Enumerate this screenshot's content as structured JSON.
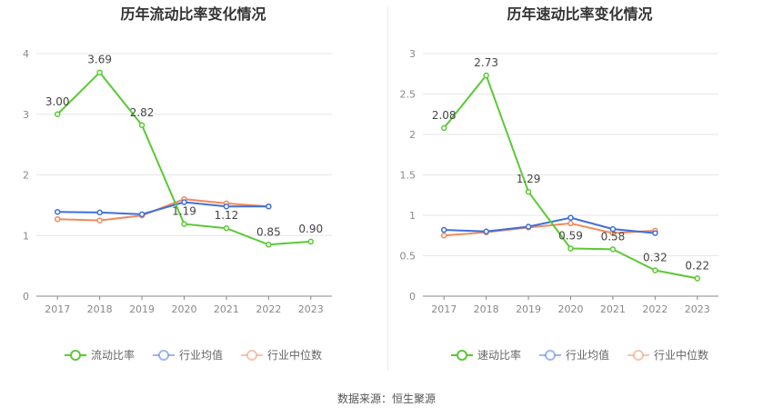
{
  "source_text": "数据来源：恒生聚源",
  "chart_data": [
    {
      "type": "line",
      "title": "历年流动比率变化情况",
      "categories": [
        "2017",
        "2018",
        "2019",
        "2020",
        "2021",
        "2022",
        "2023"
      ],
      "ylim": [
        0,
        4
      ],
      "yticks": [
        "0",
        "1",
        "2",
        "3",
        "4"
      ],
      "ytick_values": [
        0,
        1,
        2,
        3,
        4
      ],
      "grid": true,
      "legend_position": "bottom",
      "series": [
        {
          "name": "流动比率",
          "color": "#5ac935",
          "values": [
            3.0,
            3.69,
            2.82,
            1.19,
            1.12,
            0.85,
            0.9
          ],
          "labels": [
            "3.00",
            "3.69",
            "2.82",
            "1.19",
            "1.12",
            "0.85",
            "0.90"
          ]
        },
        {
          "name": "行业均值",
          "color": "#3f6fdc",
          "values": [
            1.39,
            1.38,
            1.35,
            1.55,
            1.48,
            1.48,
            null
          ]
        },
        {
          "name": "行业中位数",
          "color": "#f08a5d",
          "values": [
            1.27,
            1.25,
            1.33,
            1.6,
            1.53,
            1.48,
            null
          ]
        }
      ]
    },
    {
      "type": "line",
      "title": "历年速动比率变化情况",
      "categories": [
        "2017",
        "2018",
        "2019",
        "2020",
        "2021",
        "2022",
        "2023"
      ],
      "ylim": [
        0,
        3
      ],
      "yticks": [
        "0",
        "0.5",
        "1",
        "1.5",
        "2",
        "2.5",
        "3"
      ],
      "ytick_values": [
        0,
        0.5,
        1,
        1.5,
        2,
        2.5,
        3
      ],
      "grid": true,
      "legend_position": "bottom",
      "series": [
        {
          "name": "速动比率",
          "color": "#5ac935",
          "values": [
            2.08,
            2.73,
            1.29,
            0.59,
            0.58,
            0.32,
            0.22
          ],
          "labels": [
            "2.08",
            "2.73",
            "1.29",
            "0.59",
            "0.58",
            "0.32",
            "0.22"
          ]
        },
        {
          "name": "行业均值",
          "color": "#3f6fdc",
          "values": [
            0.82,
            0.8,
            0.86,
            0.97,
            0.83,
            0.78,
            null
          ]
        },
        {
          "name": "行业中位数",
          "color": "#f08a5d",
          "values": [
            0.75,
            0.79,
            0.85,
            0.9,
            0.78,
            0.81,
            null
          ]
        }
      ]
    }
  ]
}
